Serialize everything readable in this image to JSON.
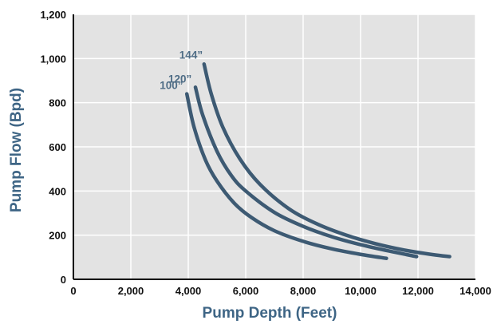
{
  "chart_data": {
    "type": "line",
    "title": "",
    "xlabel": "Pump Depth (Feet)",
    "ylabel": "Pump Flow (Bpd)",
    "xlim": [
      0,
      14000
    ],
    "ylim": [
      0,
      1200
    ],
    "x_ticks": [
      0,
      2000,
      4000,
      6000,
      8000,
      10000,
      12000,
      14000
    ],
    "x_tick_labels": [
      "0",
      "2,000",
      "4,000",
      "6,000",
      "8,000",
      "10,000",
      "12,000",
      "14,000"
    ],
    "y_ticks": [
      0,
      200,
      400,
      600,
      800,
      1000,
      1200
    ],
    "y_tick_labels": [
      "0",
      "200",
      "400",
      "600",
      "800",
      "1,000",
      "1,200"
    ],
    "grid": true,
    "legend": "none",
    "series": [
      {
        "name": "100”",
        "x": [
          3950,
          4200,
          4600,
          5000,
          5600,
          6200,
          7000,
          8000,
          9000,
          10000,
          10900
        ],
        "y": [
          840,
          690,
          540,
          445,
          345,
          280,
          220,
          172,
          138,
          113,
          95
        ]
      },
      {
        "name": "120”",
        "x": [
          4250,
          4500,
          5000,
          5500,
          6000,
          7000,
          8000,
          9000,
          10000,
          11000,
          11950
        ],
        "y": [
          870,
          745,
          580,
          470,
          400,
          303,
          240,
          193,
          157,
          128,
          103
        ]
      },
      {
        "name": "144”",
        "x": [
          4550,
          4800,
          5200,
          5800,
          6500,
          7500,
          8500,
          9500,
          10500,
          11500,
          12500,
          13100
        ],
        "y": [
          975,
          840,
          690,
          545,
          430,
          320,
          250,
          200,
          162,
          133,
          112,
          103
        ]
      }
    ],
    "colors": {
      "series_line": "#3d5a73",
      "series_label": "#4f6d86",
      "axis_title": "#3e6585",
      "plot_background": "#e3e3e3",
      "gridline": "#ffffff",
      "axis_line": "#000000",
      "tick_label": "#111111"
    }
  }
}
